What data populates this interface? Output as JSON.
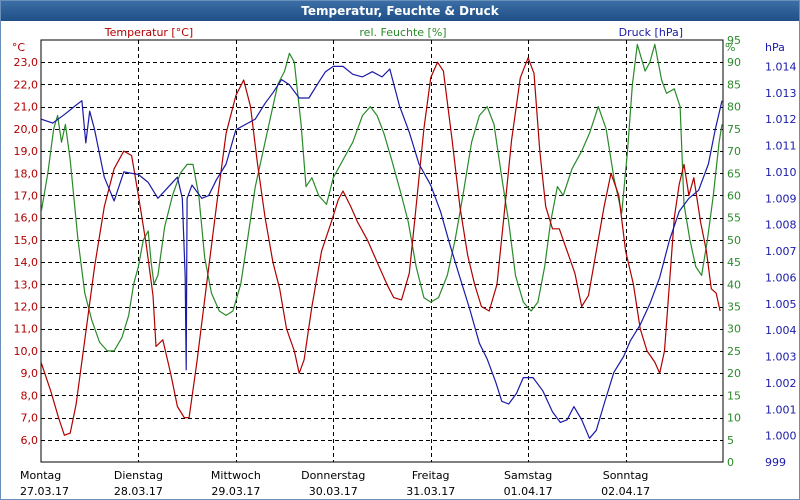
{
  "window": {
    "title": "Temperatur, Feuchte & Druck"
  },
  "chart_data": {
    "type": "line",
    "title": "Temperatur, Feuchte & Druck",
    "x": {
      "categories": [
        {
          "day": "Montag",
          "date": "27.03.17"
        },
        {
          "day": "Dienstag",
          "date": "28.03.17"
        },
        {
          "day": "Mittwoch",
          "date": "29.03.17"
        },
        {
          "day": "Donnerstag",
          "date": "30.03.17"
        },
        {
          "day": "Freitag",
          "date": "31.03.17"
        },
        {
          "day": "Samstag",
          "date": "01.04.17"
        },
        {
          "day": "Sonntag",
          "date": "02.04.17"
        }
      ],
      "range": [
        0,
        7
      ],
      "unit": "days from 27.03.17 00:00"
    },
    "axes": {
      "temperature": {
        "label": "Temperatur [°C]",
        "unit": "°C",
        "range": [
          5.0,
          24.0
        ],
        "ticks": [
          "6,0",
          "7,0",
          "8,0",
          "9,0",
          "10,0",
          "11,0",
          "12,0",
          "13,0",
          "14,0",
          "15,0",
          "16,0",
          "17,0",
          "18,0",
          "19,0",
          "20,0",
          "21,0",
          "22,0",
          "23,0"
        ],
        "color": "#b00000"
      },
      "humidity": {
        "label": "rel. Feuchte [%]",
        "unit": "%",
        "range": [
          0,
          95
        ],
        "ticks": [
          "0",
          "5",
          "10",
          "15",
          "20",
          "25",
          "30",
          "35",
          "40",
          "45",
          "50",
          "55",
          "60",
          "65",
          "70",
          "75",
          "80",
          "85",
          "90",
          "95"
        ],
        "color": "#2a8a2a"
      },
      "pressure": {
        "label": "Druck [hPa]",
        "unit": "hPa",
        "range": [
          999,
          1015
        ],
        "ticks": [
          "999",
          "1.000",
          "1.001",
          "1.002",
          "1.003",
          "1.004",
          "1.005",
          "1.006",
          "1.007",
          "1.008",
          "1.009",
          "1.010",
          "1.011",
          "1.012",
          "1.013",
          "1.014"
        ],
        "color": "#1a1aa8"
      }
    },
    "grid": true,
    "series": [
      {
        "name": "Temperatur [°C]",
        "axis": "temperature",
        "color": "#b00000",
        "points": [
          [
            0.0,
            9.5
          ],
          [
            0.1,
            8.2
          ],
          [
            0.18,
            7.0
          ],
          [
            0.24,
            6.2
          ],
          [
            0.3,
            6.3
          ],
          [
            0.36,
            7.6
          ],
          [
            0.45,
            10.5
          ],
          [
            0.55,
            13.8
          ],
          [
            0.65,
            16.5
          ],
          [
            0.75,
            18.2
          ],
          [
            0.85,
            19.0
          ],
          [
            0.93,
            18.8
          ],
          [
            1.0,
            17.0
          ],
          [
            1.08,
            14.8
          ],
          [
            1.15,
            12.5
          ],
          [
            1.18,
            10.2
          ],
          [
            1.25,
            10.5
          ],
          [
            1.33,
            9.0
          ],
          [
            1.4,
            7.5
          ],
          [
            1.47,
            7.0
          ],
          [
            1.52,
            7.0
          ],
          [
            1.6,
            9.5
          ],
          [
            1.7,
            13.0
          ],
          [
            1.8,
            16.5
          ],
          [
            1.9,
            19.8
          ],
          [
            2.0,
            21.5
          ],
          [
            2.08,
            22.2
          ],
          [
            2.15,
            21.0
          ],
          [
            2.22,
            18.5
          ],
          [
            2.3,
            16.0
          ],
          [
            2.38,
            14.0
          ],
          [
            2.45,
            12.8
          ],
          [
            2.52,
            11.0
          ],
          [
            2.6,
            10.0
          ],
          [
            2.65,
            9.0
          ],
          [
            2.7,
            9.6
          ],
          [
            2.78,
            12.0
          ],
          [
            2.88,
            14.5
          ],
          [
            2.98,
            15.8
          ],
          [
            3.05,
            16.8
          ],
          [
            3.1,
            17.2
          ],
          [
            3.18,
            16.5
          ],
          [
            3.25,
            15.8
          ],
          [
            3.35,
            15.0
          ],
          [
            3.45,
            14.0
          ],
          [
            3.55,
            13.0
          ],
          [
            3.62,
            12.4
          ],
          [
            3.7,
            12.3
          ],
          [
            3.78,
            13.5
          ],
          [
            3.85,
            16.5
          ],
          [
            3.93,
            20.0
          ],
          [
            4.0,
            22.3
          ],
          [
            4.07,
            23.0
          ],
          [
            4.13,
            22.6
          ],
          [
            4.22,
            19.5
          ],
          [
            4.3,
            16.5
          ],
          [
            4.38,
            14.3
          ],
          [
            4.45,
            13.0
          ],
          [
            4.52,
            12.0
          ],
          [
            4.6,
            11.8
          ],
          [
            4.68,
            13.0
          ],
          [
            4.75,
            16.0
          ],
          [
            4.83,
            19.5
          ],
          [
            4.92,
            22.3
          ],
          [
            5.0,
            23.2
          ],
          [
            5.06,
            22.5
          ],
          [
            5.12,
            19.0
          ],
          [
            5.18,
            16.5
          ],
          [
            5.25,
            15.5
          ],
          [
            5.32,
            15.5
          ],
          [
            5.4,
            14.5
          ],
          [
            5.48,
            13.5
          ],
          [
            5.55,
            12.0
          ],
          [
            5.62,
            12.5
          ],
          [
            5.7,
            14.5
          ],
          [
            5.78,
            16.5
          ],
          [
            5.85,
            18.0
          ],
          [
            5.93,
            17.0
          ],
          [
            6.0,
            14.5
          ],
          [
            6.08,
            13.0
          ],
          [
            6.15,
            11.0
          ],
          [
            6.22,
            10.0
          ],
          [
            6.3,
            9.5
          ],
          [
            6.35,
            9.0
          ],
          [
            6.4,
            10.0
          ],
          [
            6.45,
            13.0
          ],
          [
            6.5,
            16.0
          ],
          [
            6.55,
            17.5
          ],
          [
            6.6,
            18.4
          ],
          [
            6.65,
            17.0
          ],
          [
            6.7,
            17.8
          ],
          [
            6.77,
            15.8
          ],
          [
            6.83,
            14.5
          ],
          [
            6.88,
            12.8
          ],
          [
            6.93,
            12.6
          ],
          [
            6.97,
            11.8
          ]
        ]
      },
      {
        "name": "rel. Feuchte [%]",
        "axis": "humidity",
        "color": "#2a8a2a",
        "points": [
          [
            0.0,
            56
          ],
          [
            0.07,
            65
          ],
          [
            0.13,
            75
          ],
          [
            0.17,
            78
          ],
          [
            0.21,
            72
          ],
          [
            0.25,
            76
          ],
          [
            0.3,
            68
          ],
          [
            0.38,
            50
          ],
          [
            0.45,
            38
          ],
          [
            0.52,
            32
          ],
          [
            0.6,
            27
          ],
          [
            0.68,
            25
          ],
          [
            0.75,
            25
          ],
          [
            0.83,
            28
          ],
          [
            0.9,
            33
          ],
          [
            0.95,
            40
          ],
          [
            1.0,
            44
          ],
          [
            1.05,
            50
          ],
          [
            1.1,
            52
          ],
          [
            1.13,
            45
          ],
          [
            1.16,
            40
          ],
          [
            1.2,
            42
          ],
          [
            1.27,
            53
          ],
          [
            1.35,
            60
          ],
          [
            1.43,
            65
          ],
          [
            1.5,
            67
          ],
          [
            1.56,
            67
          ],
          [
            1.62,
            60
          ],
          [
            1.68,
            46
          ],
          [
            1.75,
            38
          ],
          [
            1.83,
            34
          ],
          [
            1.9,
            33
          ],
          [
            1.97,
            34
          ],
          [
            2.05,
            40
          ],
          [
            2.12,
            50
          ],
          [
            2.2,
            62
          ],
          [
            2.28,
            70
          ],
          [
            2.36,
            78
          ],
          [
            2.43,
            85
          ],
          [
            2.5,
            88
          ],
          [
            2.55,
            92
          ],
          [
            2.6,
            90
          ],
          [
            2.67,
            76
          ],
          [
            2.72,
            62
          ],
          [
            2.78,
            64
          ],
          [
            2.85,
            60
          ],
          [
            2.93,
            58
          ],
          [
            3.0,
            64
          ],
          [
            3.1,
            68
          ],
          [
            3.2,
            72
          ],
          [
            3.3,
            78
          ],
          [
            3.38,
            80
          ],
          [
            3.45,
            78
          ],
          [
            3.52,
            74
          ],
          [
            3.6,
            68
          ],
          [
            3.7,
            60
          ],
          [
            3.77,
            54
          ],
          [
            3.85,
            44
          ],
          [
            3.93,
            37
          ],
          [
            4.0,
            36
          ],
          [
            4.08,
            37
          ],
          [
            4.17,
            42
          ],
          [
            4.25,
            50
          ],
          [
            4.33,
            60
          ],
          [
            4.42,
            72
          ],
          [
            4.5,
            78
          ],
          [
            4.58,
            80
          ],
          [
            4.65,
            76
          ],
          [
            4.73,
            64
          ],
          [
            4.8,
            54
          ],
          [
            4.87,
            42
          ],
          [
            4.95,
            36
          ],
          [
            5.03,
            34
          ],
          [
            5.1,
            36
          ],
          [
            5.17,
            44
          ],
          [
            5.23,
            54
          ],
          [
            5.3,
            62
          ],
          [
            5.36,
            60
          ],
          [
            5.45,
            66
          ],
          [
            5.55,
            70
          ],
          [
            5.63,
            74
          ],
          [
            5.72,
            80
          ],
          [
            5.8,
            75
          ],
          [
            5.88,
            64
          ],
          [
            5.96,
            56
          ],
          [
            6.02,
            70
          ],
          [
            6.07,
            85
          ],
          [
            6.12,
            94
          ],
          [
            6.2,
            88
          ],
          [
            6.25,
            90
          ],
          [
            6.3,
            94
          ],
          [
            6.37,
            86
          ],
          [
            6.42,
            83
          ],
          [
            6.5,
            84
          ],
          [
            6.56,
            80
          ],
          [
            6.6,
            58
          ],
          [
            6.66,
            50
          ],
          [
            6.72,
            44
          ],
          [
            6.78,
            42
          ],
          [
            6.84,
            50
          ],
          [
            6.9,
            60
          ],
          [
            6.96,
            72
          ],
          [
            6.99,
            76
          ]
        ]
      },
      {
        "name": "Druck [hPa]",
        "axis": "pressure",
        "color": "#1a1aa8",
        "points": [
          [
            0.0,
            1012.0
          ],
          [
            0.12,
            1011.85
          ],
          [
            0.25,
            1012.2
          ],
          [
            0.35,
            1012.5
          ],
          [
            0.42,
            1012.7
          ],
          [
            0.46,
            1011.1
          ],
          [
            0.5,
            1012.3
          ],
          [
            0.55,
            1011.6
          ],
          [
            0.65,
            1009.8
          ],
          [
            0.75,
            1008.9
          ],
          [
            0.85,
            1010.0
          ],
          [
            1.0,
            1009.9
          ],
          [
            1.1,
            1009.6
          ],
          [
            1.2,
            1009.0
          ],
          [
            1.3,
            1009.4
          ],
          [
            1.4,
            1009.8
          ],
          [
            1.45,
            1009.0
          ],
          [
            1.48,
            1006.0
          ],
          [
            1.49,
            1002.5
          ],
          [
            1.5,
            1009.0
          ],
          [
            1.55,
            1009.5
          ],
          [
            1.65,
            1009.0
          ],
          [
            1.72,
            1009.1
          ],
          [
            1.8,
            1009.7
          ],
          [
            1.9,
            1010.3
          ],
          [
            2.0,
            1011.6
          ],
          [
            2.1,
            1011.8
          ],
          [
            2.2,
            1012.0
          ],
          [
            2.3,
            1012.6
          ],
          [
            2.38,
            1013.0
          ],
          [
            2.47,
            1013.5
          ],
          [
            2.55,
            1013.3
          ],
          [
            2.65,
            1012.8
          ],
          [
            2.75,
            1012.8
          ],
          [
            2.85,
            1013.4
          ],
          [
            2.92,
            1013.8
          ],
          [
            3.0,
            1014.0
          ],
          [
            3.1,
            1014.0
          ],
          [
            3.2,
            1013.7
          ],
          [
            3.3,
            1013.6
          ],
          [
            3.4,
            1013.8
          ],
          [
            3.5,
            1013.6
          ],
          [
            3.58,
            1013.9
          ],
          [
            3.68,
            1012.5
          ],
          [
            3.78,
            1011.5
          ],
          [
            3.88,
            1010.3
          ],
          [
            4.0,
            1009.5
          ],
          [
            4.1,
            1008.5
          ],
          [
            4.2,
            1007.2
          ],
          [
            4.3,
            1006.0
          ],
          [
            4.4,
            1004.8
          ],
          [
            4.5,
            1003.5
          ],
          [
            4.58,
            1002.9
          ],
          [
            4.67,
            1002.0
          ],
          [
            4.73,
            1001.3
          ],
          [
            4.8,
            1001.2
          ],
          [
            4.88,
            1001.6
          ],
          [
            4.95,
            1002.2
          ],
          [
            5.05,
            1002.2
          ],
          [
            5.15,
            1001.7
          ],
          [
            5.25,
            1000.9
          ],
          [
            5.33,
            1000.5
          ],
          [
            5.4,
            1000.6
          ],
          [
            5.47,
            1001.1
          ],
          [
            5.55,
            1000.6
          ],
          [
            5.63,
            999.9
          ],
          [
            5.7,
            1000.2
          ],
          [
            5.78,
            1001.2
          ],
          [
            5.88,
            1002.4
          ],
          [
            5.98,
            1003.0
          ],
          [
            6.05,
            1003.6
          ],
          [
            6.15,
            1004.2
          ],
          [
            6.25,
            1005.0
          ],
          [
            6.35,
            1006.0
          ],
          [
            6.45,
            1007.4
          ],
          [
            6.55,
            1008.5
          ],
          [
            6.65,
            1009.0
          ],
          [
            6.75,
            1009.3
          ],
          [
            6.85,
            1010.3
          ],
          [
            6.92,
            1011.6
          ],
          [
            6.99,
            1012.7
          ]
        ]
      }
    ]
  }
}
